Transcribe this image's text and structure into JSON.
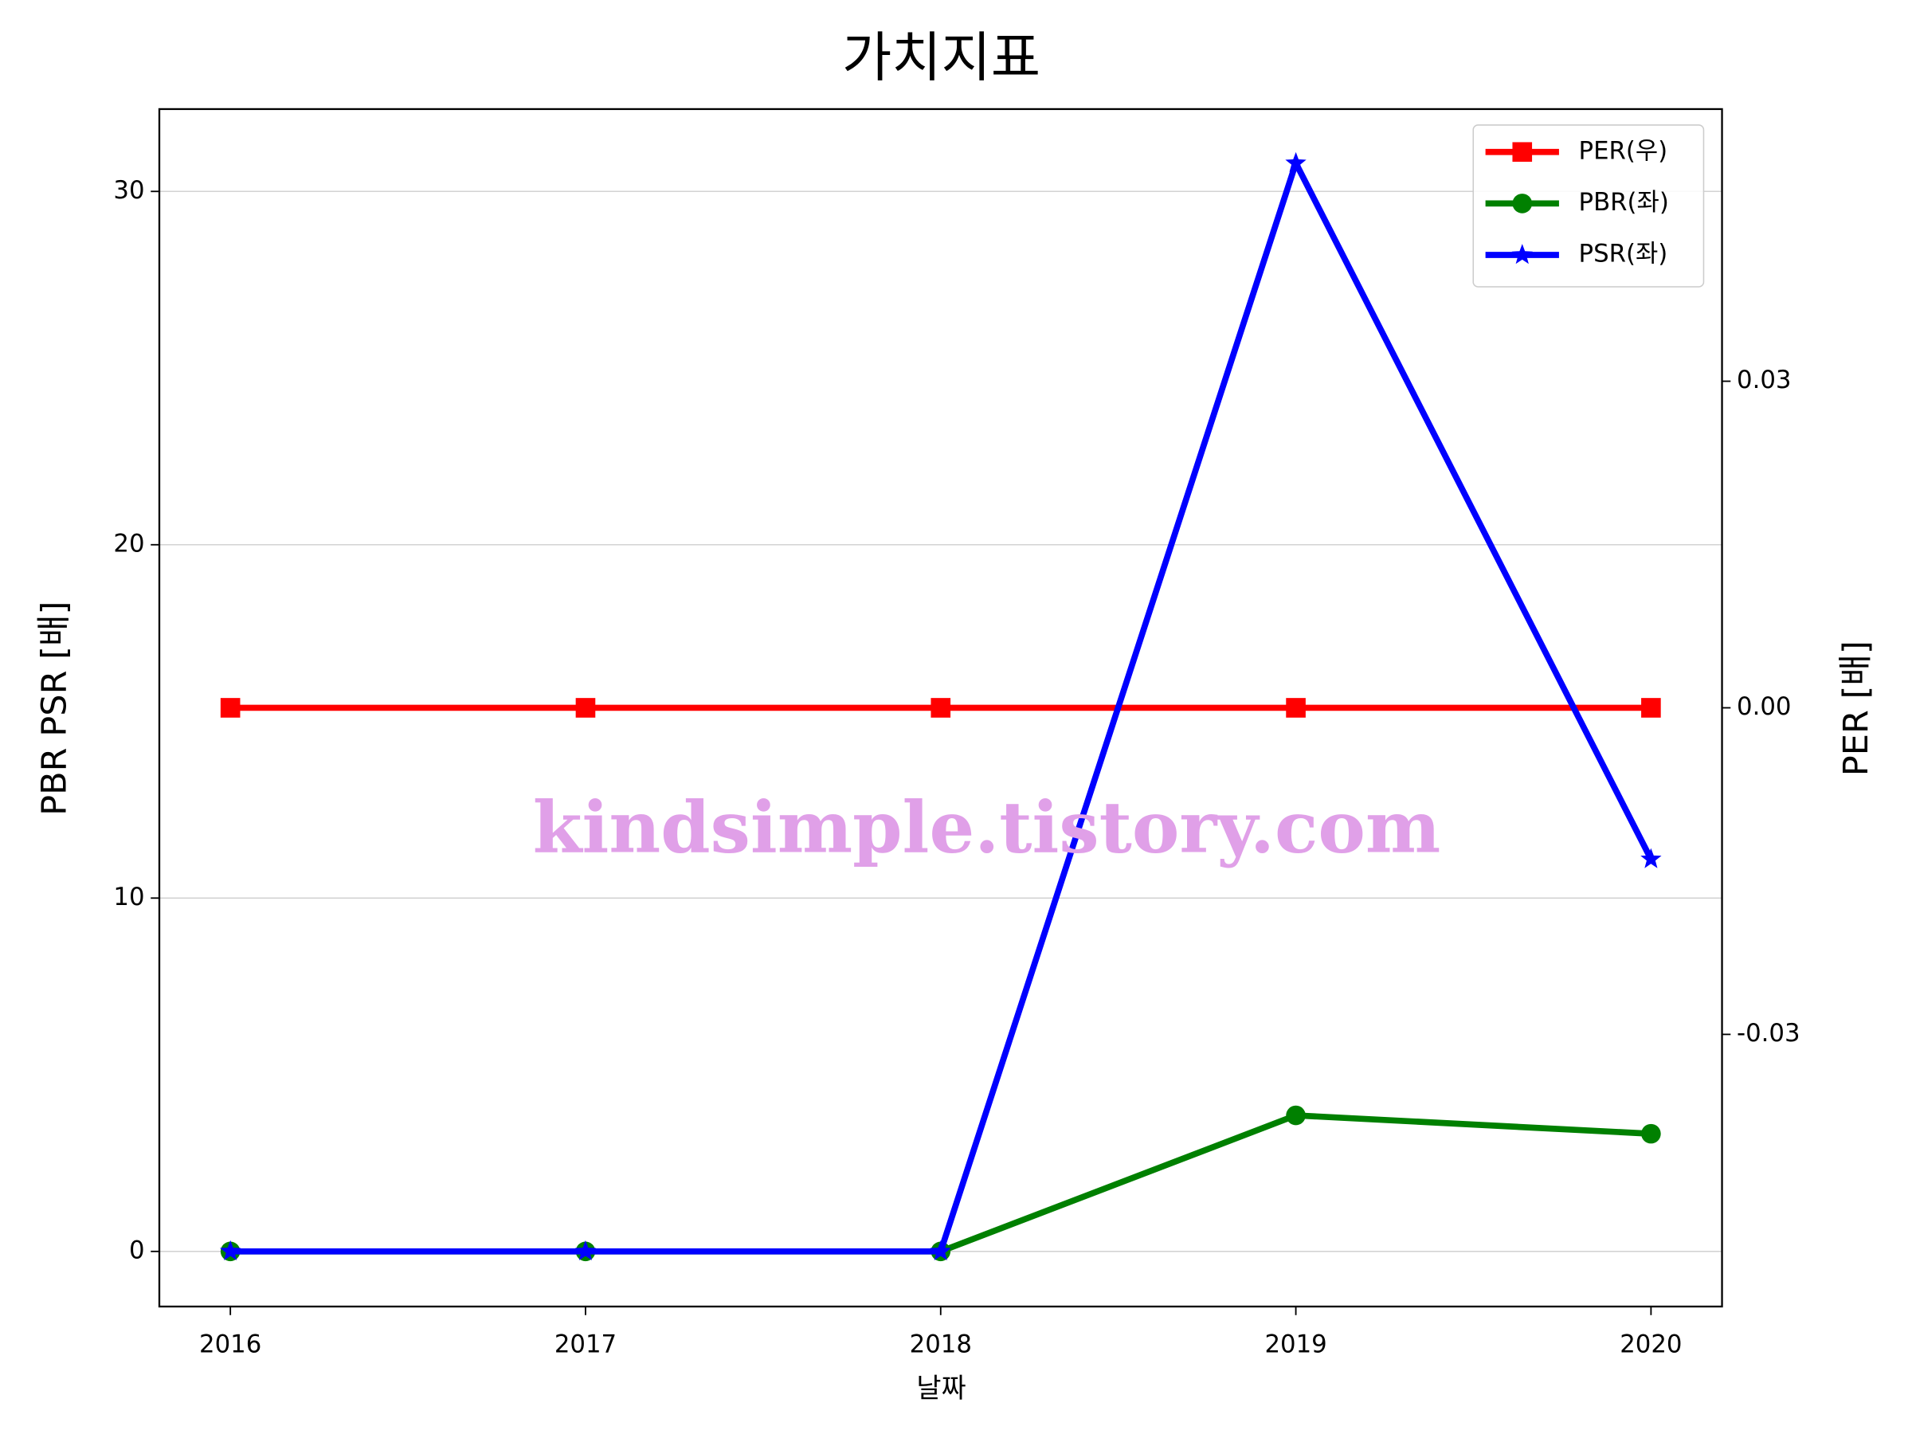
{
  "chart_data": {
    "type": "line",
    "title": "가치지표",
    "x_label": "날짜",
    "y_label": "PBR PSR [배]",
    "y2_label": "PER [배]",
    "y_label_color": "#008000",
    "y2_label_color": "#ff0000",
    "annotation": "kindsimple.tistory.com",
    "x": [
      2016,
      2017,
      2018,
      2019,
      2020
    ],
    "xlim": [
      2015.8,
      2020.2
    ],
    "xticks": [
      2016,
      2017,
      2018,
      2019,
      2020
    ],
    "ylim": [
      -1.56,
      32.33
    ],
    "yticks": [
      0,
      10,
      20,
      30
    ],
    "y2lim": [
      -0.055,
      0.055
    ],
    "y2ticks": [
      -0.03,
      {
        "value": 0,
        "label": "0.00"
      },
      0.03
    ],
    "grid": true,
    "legend": "upper right",
    "series": [
      {
        "name": "PER(우)",
        "color": "#ff0000",
        "marker": "square",
        "axis": "y2",
        "values": [
          0,
          0,
          0,
          0,
          0
        ]
      },
      {
        "name": "PBR(좌)",
        "color": "#008000",
        "marker": "circle",
        "values": [
          0,
          0,
          0,
          3.85,
          3.33
        ]
      },
      {
        "name": "PSR(좌)",
        "color": "#0000ff",
        "marker": "star",
        "values": [
          0,
          0,
          0,
          30.8,
          11.1
        ]
      }
    ]
  }
}
